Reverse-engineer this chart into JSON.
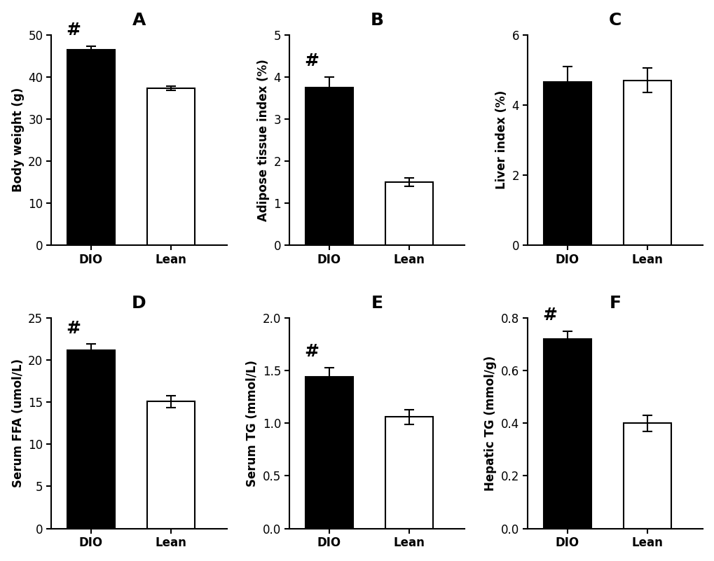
{
  "panels": [
    {
      "label": "A",
      "ylabel": "Body weight (g)",
      "categories": [
        "DIO",
        "Lean"
      ],
      "values": [
        46.5,
        37.2
      ],
      "errors": [
        0.8,
        0.5
      ],
      "colors": [
        "#000000",
        "#ffffff"
      ],
      "ylim": [
        0,
        50
      ],
      "yticks": [
        0,
        10,
        20,
        30,
        40,
        50
      ],
      "hash_on": 0,
      "significant": true,
      "decimal_fmt": false
    },
    {
      "label": "B",
      "ylabel": "Adipose tissue index (%)",
      "categories": [
        "DIO",
        "Lean"
      ],
      "values": [
        3.75,
        1.5
      ],
      "errors": [
        0.25,
        0.1
      ],
      "colors": [
        "#000000",
        "#ffffff"
      ],
      "ylim": [
        0,
        5
      ],
      "yticks": [
        0,
        1,
        2,
        3,
        4,
        5
      ],
      "hash_on": 0,
      "significant": true,
      "decimal_fmt": false
    },
    {
      "label": "C",
      "ylabel": "Liver index (%)",
      "categories": [
        "DIO",
        "Lean"
      ],
      "values": [
        4.65,
        4.7
      ],
      "errors": [
        0.45,
        0.35
      ],
      "colors": [
        "#000000",
        "#ffffff"
      ],
      "ylim": [
        0,
        6
      ],
      "yticks": [
        0,
        2,
        4,
        6
      ],
      "hash_on": -1,
      "significant": false,
      "decimal_fmt": false
    },
    {
      "label": "D",
      "ylabel": "Serum FFA (umol/L)",
      "categories": [
        "DIO",
        "Lean"
      ],
      "values": [
        21.2,
        15.1
      ],
      "errors": [
        0.7,
        0.7
      ],
      "colors": [
        "#000000",
        "#ffffff"
      ],
      "ylim": [
        0,
        25
      ],
      "yticks": [
        0,
        5,
        10,
        15,
        20,
        25
      ],
      "hash_on": 0,
      "significant": true,
      "decimal_fmt": false
    },
    {
      "label": "E",
      "ylabel": "Serum TG (mmol/L)",
      "categories": [
        "DIO",
        "Lean"
      ],
      "values": [
        1.44,
        1.06
      ],
      "errors": [
        0.09,
        0.07
      ],
      "colors": [
        "#000000",
        "#ffffff"
      ],
      "ylim": [
        0.0,
        2.0
      ],
      "yticks": [
        0.0,
        0.5,
        1.0,
        1.5,
        2.0
      ],
      "hash_on": 0,
      "significant": true,
      "decimal_fmt": true
    },
    {
      "label": "F",
      "ylabel": "Hepatic TG (mmol/g)",
      "categories": [
        "DIO",
        "Lean"
      ],
      "values": [
        0.72,
        0.4
      ],
      "errors": [
        0.03,
        0.03
      ],
      "colors": [
        "#000000",
        "#ffffff"
      ],
      "ylim": [
        0.0,
        0.8
      ],
      "yticks": [
        0.0,
        0.2,
        0.4,
        0.6,
        0.8
      ],
      "hash_on": 0,
      "significant": true,
      "decimal_fmt": true
    }
  ],
  "bar_width": 0.6,
  "title_fontsize": 18,
  "label_fontsize": 12,
  "tick_fontsize": 12,
  "hash_fontsize": 18,
  "background_color": "#ffffff",
  "edge_color": "#000000"
}
